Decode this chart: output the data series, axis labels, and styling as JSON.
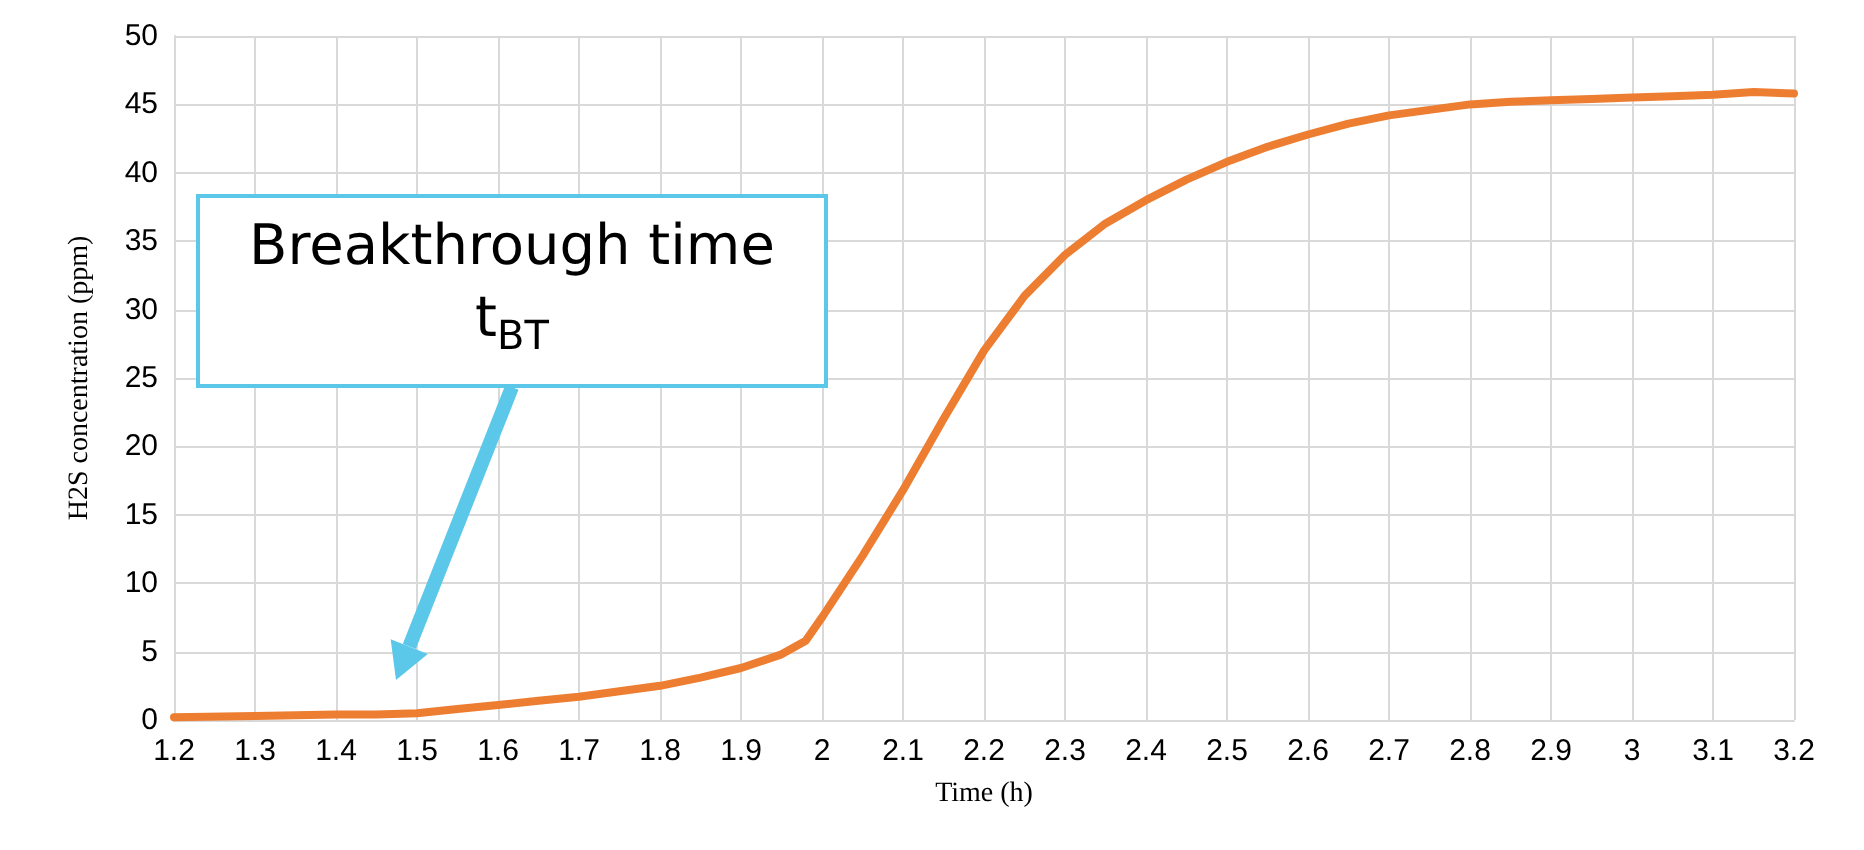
{
  "chart_data": {
    "type": "line",
    "xlabel": "Time (h)",
    "ylabel": "H2S concentration (ppm)",
    "xlim": [
      1.2,
      3.2
    ],
    "xticks": [
      1.2,
      1.3,
      1.4,
      1.5,
      1.6,
      1.7,
      1.8,
      1.9,
      2,
      2.1,
      2.2,
      2.3,
      2.4,
      2.5,
      2.6,
      2.7,
      2.8,
      2.9,
      3,
      3.1,
      3.2
    ],
    "ylim": [
      0,
      50
    ],
    "yticks": [
      0,
      5,
      10,
      15,
      20,
      25,
      30,
      35,
      40,
      45,
      50
    ],
    "grid": true,
    "marker": "none",
    "line_style": "solid",
    "series": [
      {
        "color": "#ed7d31",
        "x": [
          1.2,
          1.3,
          1.4,
          1.45,
          1.5,
          1.55,
          1.6,
          1.65,
          1.7,
          1.75,
          1.8,
          1.85,
          1.9,
          1.95,
          1.98,
          2.0,
          2.05,
          2.1,
          2.15,
          2.2,
          2.25,
          2.3,
          2.35,
          2.4,
          2.45,
          2.5,
          2.55,
          2.6,
          2.65,
          2.7,
          2.75,
          2.8,
          2.85,
          2.9,
          2.95,
          3.0,
          3.05,
          3.1,
          3.15,
          3.2
        ],
        "values": [
          0.2,
          0.3,
          0.4,
          0.4,
          0.5,
          0.8,
          1.1,
          1.4,
          1.7,
          2.1,
          2.5,
          3.1,
          3.8,
          4.8,
          5.8,
          7.5,
          12,
          16.8,
          22,
          27,
          31,
          34,
          36.3,
          38,
          39.5,
          40.8,
          41.9,
          42.8,
          43.6,
          44.2,
          44.6,
          45,
          45.2,
          45.3,
          45.4,
          45.5,
          45.6,
          45.7,
          45.9,
          45.8
        ]
      }
    ],
    "annotations": [
      "Breakthrough time t$_{BT}$"
    ]
  }
}
